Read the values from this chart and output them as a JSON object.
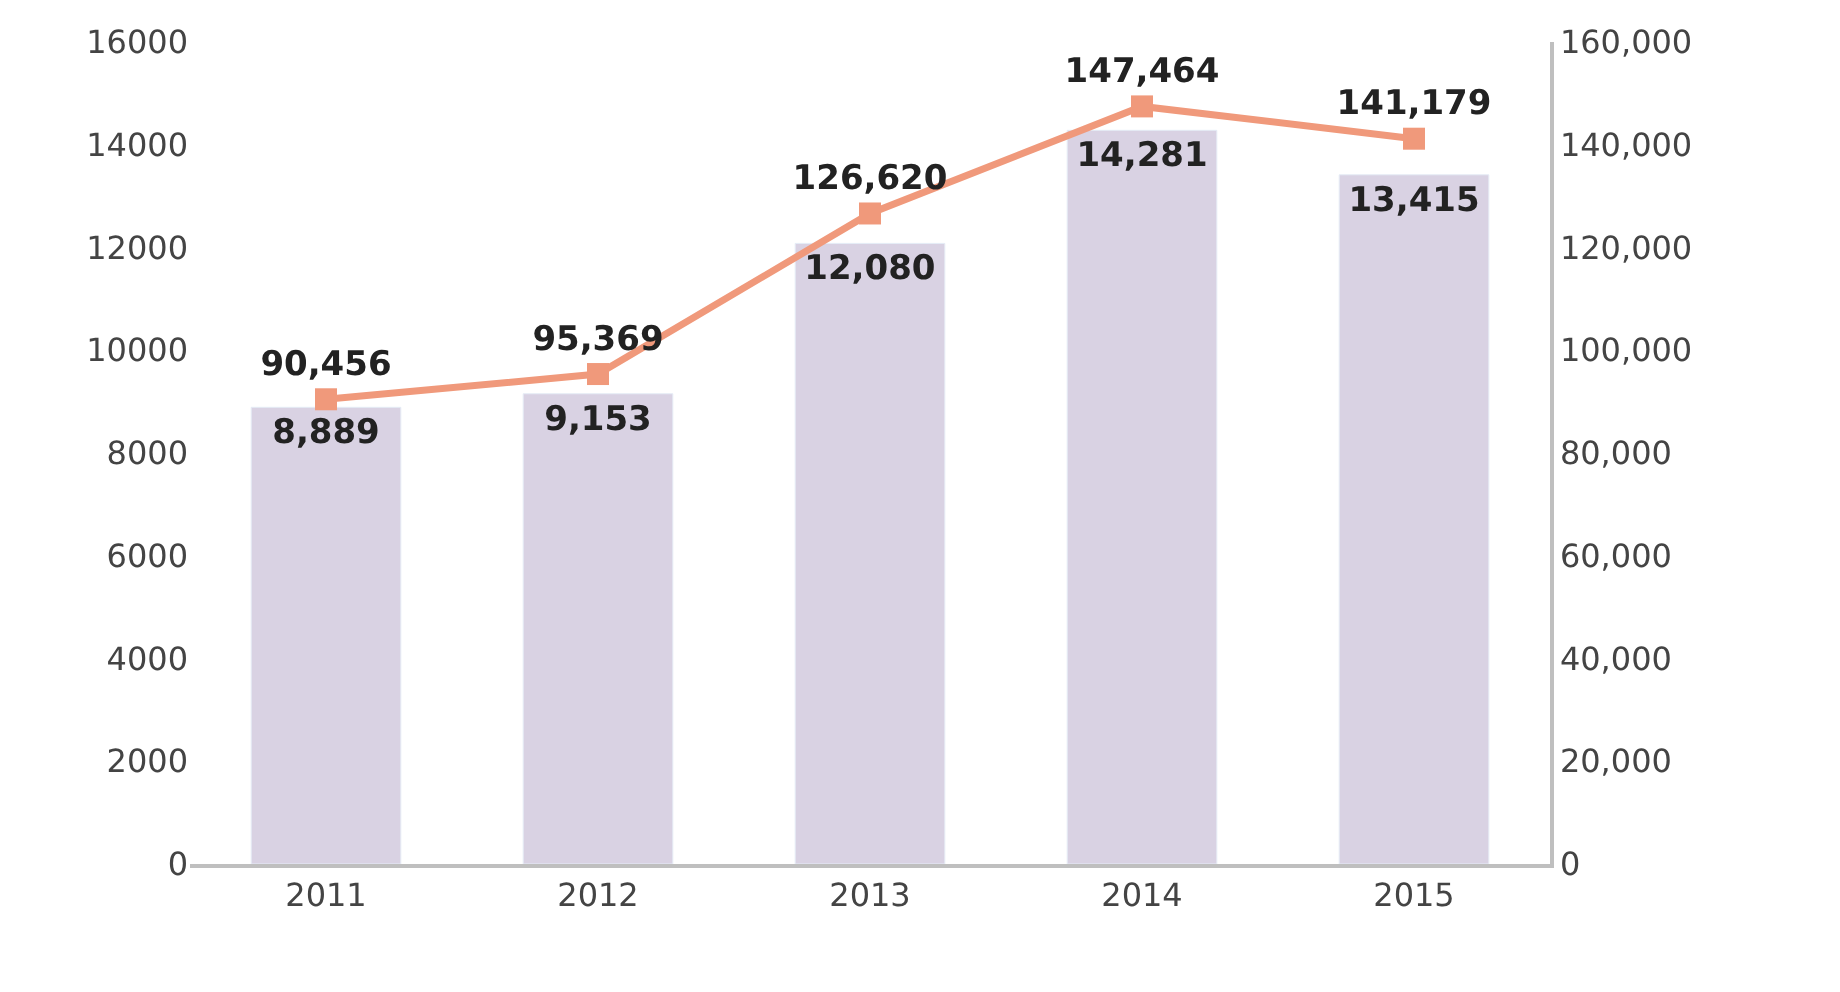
{
  "chart_data": {
    "type": "bar",
    "categories": [
      "2011",
      "2012",
      "2013",
      "2014",
      "2015"
    ],
    "series": [
      {
        "color": "#d9d2e3",
        "values": [
          8889,
          9153,
          12080,
          14281,
          13415
        ],
        "value_labels": [
          "8,889",
          "9,153",
          "12,080",
          "14,281",
          "13,415"
        ]
      },
      {
        "type": "line",
        "axis": "y2",
        "color": "#f0997b",
        "marker": "square",
        "values": [
          90456,
          95369,
          126620,
          147464,
          141179
        ],
        "value_labels": [
          "90,456",
          "95,369",
          "126,620",
          "147,464",
          "141,179"
        ]
      }
    ],
    "ylim": [
      0,
      16000
    ],
    "yticks": [
      0,
      2000,
      4000,
      6000,
      8000,
      10000,
      12000,
      14000,
      16000
    ],
    "y2lim": [
      0,
      160000
    ],
    "y2ticks": [
      0,
      {
        "value": 20000,
        "label": "20,000"
      },
      {
        "value": 40000,
        "label": "40,000"
      },
      {
        "value": 60000,
        "label": "60,000"
      },
      {
        "value": 80000,
        "label": "80,000"
      },
      {
        "value": 100000,
        "label": "100,000"
      },
      {
        "value": 120000,
        "label": "120,000"
      },
      {
        "value": 140000,
        "label": "140,000"
      },
      {
        "value": 160000,
        "label": "160,000"
      }
    ],
    "tick_labels": true
  }
}
